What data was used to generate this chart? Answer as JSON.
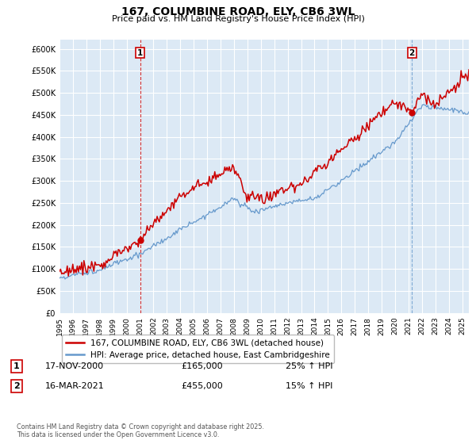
{
  "title": "167, COLUMBINE ROAD, ELY, CB6 3WL",
  "subtitle": "Price paid vs. HM Land Registry's House Price Index (HPI)",
  "ylim": [
    0,
    620000
  ],
  "yticks": [
    0,
    50000,
    100000,
    150000,
    200000,
    250000,
    300000,
    350000,
    400000,
    450000,
    500000,
    550000,
    600000
  ],
  "ytick_labels": [
    "£0",
    "£50K",
    "£100K",
    "£150K",
    "£200K",
    "£250K",
    "£300K",
    "£350K",
    "£400K",
    "£450K",
    "£500K",
    "£550K",
    "£600K"
  ],
  "red_color": "#cc0000",
  "blue_color": "#6699cc",
  "vline1_color": "#cc0000",
  "vline1_style": "--",
  "vline2_color": "#6699cc",
  "vline2_style": "--",
  "background_color": "#ffffff",
  "plot_bg_color": "#dce9f5",
  "grid_color": "#ffffff",
  "legend_label_red": "167, COLUMBINE ROAD, ELY, CB6 3WL (detached house)",
  "legend_label_blue": "HPI: Average price, detached house, East Cambridgeshire",
  "annotation1_date": "17-NOV-2000",
  "annotation1_price": "£165,000",
  "annotation1_hpi": "25% ↑ HPI",
  "annotation2_date": "16-MAR-2021",
  "annotation2_price": "£455,000",
  "annotation2_hpi": "15% ↑ HPI",
  "copyright_text": "Contains HM Land Registry data © Crown copyright and database right 2025.\nThis data is licensed under the Open Government Licence v3.0.",
  "marker1_x": 2001.0,
  "marker1_y": 165000,
  "marker2_x": 2021.25,
  "marker2_y": 455000,
  "xlim_start": 1995,
  "xlim_end": 2025.5
}
